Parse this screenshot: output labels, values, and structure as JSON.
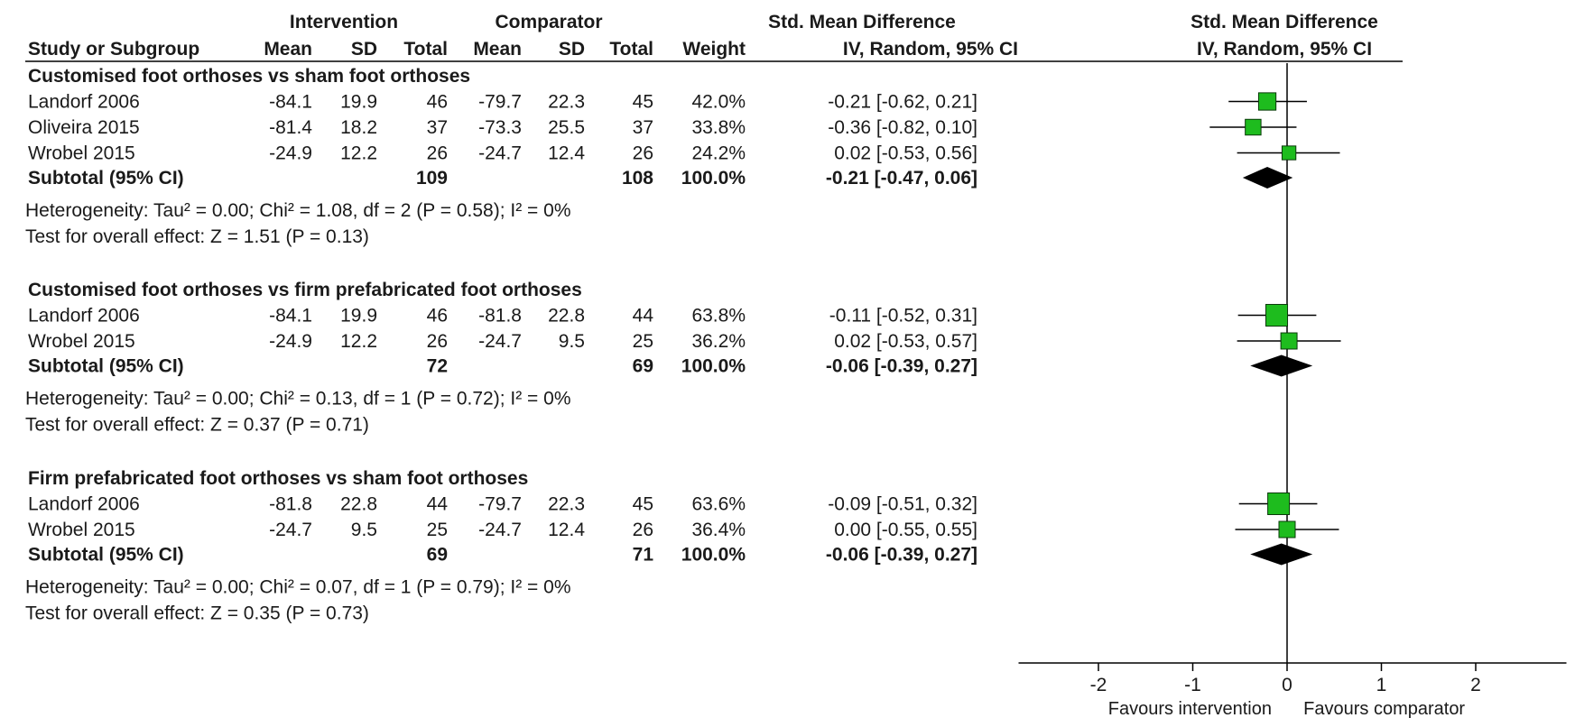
{
  "header": {
    "group1": "Intervention",
    "group2": "Comparator",
    "smd_title": "Std. Mean Difference",
    "smd_method": "IV, Random, 95% CI",
    "plot_title": "Std. Mean Difference",
    "plot_method": "IV, Random, 95% CI",
    "columns": {
      "study": "Study or Subgroup",
      "mean1": "Mean",
      "sd1": "SD",
      "total1": "Total",
      "mean2": "Mean",
      "sd2": "SD",
      "total2": "Total",
      "weight": "Weight"
    }
  },
  "chart_data": {
    "type": "forest",
    "x_ticks": [
      -2,
      -1,
      0,
      1,
      2
    ],
    "x_tick_labels": [
      "-2",
      "-1",
      "0",
      "1",
      "2"
    ],
    "xlim": [
      -3,
      3
    ],
    "favours_left": "Favours intervention",
    "favours_right": "Favours comparator",
    "subgroups": [
      {
        "title": "Customised foot orthoses vs sham foot orthoses",
        "studies": [
          {
            "name": "Landorf 2006",
            "mean1": "-84.1",
            "sd1": "19.9",
            "n1": "46",
            "mean2": "-79.7",
            "sd2": "22.3",
            "n2": "45",
            "weight": "42.0%",
            "ci_text": "-0.21 [-0.62, 0.21]",
            "est": -0.21,
            "lo": -0.62,
            "hi": 0.21,
            "w": 42.0
          },
          {
            "name": "Oliveira 2015",
            "mean1": "-81.4",
            "sd1": "18.2",
            "n1": "37",
            "mean2": "-73.3",
            "sd2": "25.5",
            "n2": "37",
            "weight": "33.8%",
            "ci_text": "-0.36 [-0.82, 0.10]",
            "est": -0.36,
            "lo": -0.82,
            "hi": 0.1,
            "w": 33.8
          },
          {
            "name": "Wrobel 2015",
            "mean1": "-24.9",
            "sd1": "12.2",
            "n1": "26",
            "mean2": "-24.7",
            "sd2": "12.4",
            "n2": "26",
            "weight": "24.2%",
            "ci_text": "0.02 [-0.53, 0.56]",
            "est": 0.02,
            "lo": -0.53,
            "hi": 0.56,
            "w": 24.2
          }
        ],
        "subtotal": {
          "label": "Subtotal (95% CI)",
          "n1": "109",
          "n2": "108",
          "weight": "100.0%",
          "ci_text": "-0.21 [-0.47, 0.06]",
          "est": -0.21,
          "lo": -0.47,
          "hi": 0.06
        },
        "heterogeneity": "Heterogeneity:  Tau² = 0.00; Chi² = 1.08, df = 2 (P = 0.58); I² = 0%",
        "overall": "Test for overall effect:  Z = 1.51 (P = 0.13)"
      },
      {
        "title": "Customised foot orthoses vs firm prefabricated foot orthoses",
        "studies": [
          {
            "name": "Landorf 2006",
            "mean1": "-84.1",
            "sd1": "19.9",
            "n1": "46",
            "mean2": "-81.8",
            "sd2": "22.8",
            "n2": "44",
            "weight": "63.8%",
            "ci_text": "-0.11 [-0.52, 0.31]",
            "est": -0.11,
            "lo": -0.52,
            "hi": 0.31,
            "w": 63.8
          },
          {
            "name": "Wrobel 2015",
            "mean1": "-24.9",
            "sd1": "12.2",
            "n1": "26",
            "mean2": "-24.7",
            "sd2": "9.5",
            "n2": "25",
            "weight": "36.2%",
            "ci_text": "0.02 [-0.53, 0.57]",
            "est": 0.02,
            "lo": -0.53,
            "hi": 0.57,
            "w": 36.2
          }
        ],
        "subtotal": {
          "label": "Subtotal (95% CI)",
          "n1": "72",
          "n2": "69",
          "weight": "100.0%",
          "ci_text": "-0.06 [-0.39, 0.27]",
          "est": -0.06,
          "lo": -0.39,
          "hi": 0.27
        },
        "heterogeneity": "Heterogeneity:  Tau² = 0.00; Chi² = 0.13, df = 1 (P = 0.72); I² = 0%",
        "overall": "Test for overall effect:  Z = 0.37 (P = 0.71)"
      },
      {
        "title": "Firm prefabricated foot orthoses vs sham foot orthoses",
        "studies": [
          {
            "name": "Landorf 2006",
            "mean1": "-81.8",
            "sd1": "22.8",
            "n1": "44",
            "mean2": "-79.7",
            "sd2": "22.3",
            "n2": "45",
            "weight": "63.6%",
            "ci_text": "-0.09 [-0.51, 0.32]",
            "est": -0.09,
            "lo": -0.51,
            "hi": 0.32,
            "w": 63.6
          },
          {
            "name": "Wrobel 2015",
            "mean1": "-24.7",
            "sd1": "9.5",
            "n1": "25",
            "mean2": "-24.7",
            "sd2": "12.4",
            "n2": "26",
            "weight": "36.4%",
            "ci_text": "0.00 [-0.55, 0.55]",
            "est": 0.0,
            "lo": -0.55,
            "hi": 0.55,
            "w": 36.4
          }
        ],
        "subtotal": {
          "label": "Subtotal (95% CI)",
          "n1": "69",
          "n2": "71",
          "weight": "100.0%",
          "ci_text": "-0.06 [-0.39, 0.27]",
          "est": -0.06,
          "lo": -0.39,
          "hi": 0.27
        },
        "heterogeneity": "Heterogeneity:  Tau² = 0.00; Chi² = 0.07, df = 1 (P = 0.79); I² = 0%",
        "overall": "Test for overall effect:  Z = 0.35 (P = 0.73)"
      }
    ],
    "colors": {
      "study_marker": "#1ebc1e",
      "marker_stroke": "#0a3a0a",
      "diamond": "#000000",
      "line": "#000000"
    }
  }
}
